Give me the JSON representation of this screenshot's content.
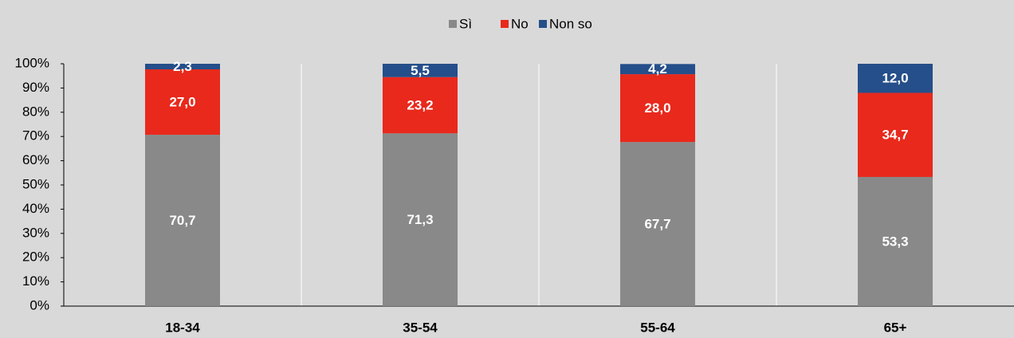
{
  "chart_data": {
    "type": "stacked_bar",
    "categories": [
      "18-34",
      "35-54",
      "55-64",
      "65+"
    ],
    "series": [
      {
        "name": "Sì",
        "color": "#898989",
        "values": [
          70.7,
          71.3,
          67.7,
          53.3
        ],
        "value_labels": [
          "70,7",
          "71,3",
          "67,7",
          "53,3"
        ]
      },
      {
        "name": "No",
        "color": "#e8291c",
        "values": [
          27.0,
          23.2,
          28.0,
          34.7
        ],
        "value_labels": [
          "27,0",
          "23,2",
          "28,0",
          "34,7"
        ]
      },
      {
        "name": "Non so",
        "color": "#254f8a",
        "values": [
          2.3,
          5.5,
          4.2,
          12.0
        ],
        "value_labels": [
          "2,3",
          "5,5",
          "4,2",
          "12,0"
        ]
      }
    ],
    "ylim": [
      0,
      100
    ],
    "yticks": [
      {
        "value": 0,
        "label": "0%"
      },
      {
        "value": 10,
        "label": "10%"
      },
      {
        "value": 20,
        "label": "20%"
      },
      {
        "value": 30,
        "label": "30%"
      },
      {
        "value": 40,
        "label": "40%"
      },
      {
        "value": 50,
        "label": "50%"
      },
      {
        "value": 60,
        "label": "60%"
      },
      {
        "value": 70,
        "label": "70%"
      },
      {
        "value": 80,
        "label": "80%"
      },
      {
        "value": 90,
        "label": "90%"
      },
      {
        "value": 100,
        "label": "100%"
      }
    ],
    "legend": "top"
  }
}
